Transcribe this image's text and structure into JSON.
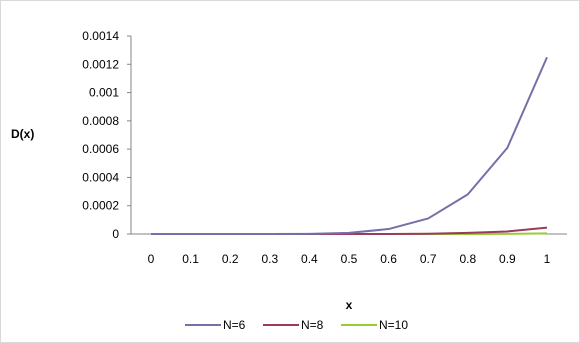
{
  "chart_data": {
    "type": "line",
    "title": "",
    "xlabel": "x",
    "ylabel": "D(x)",
    "x": [
      0,
      0.1,
      0.2,
      0.3,
      0.4,
      0.5,
      0.6,
      0.7,
      0.8,
      0.9,
      1
    ],
    "x_tick_labels": [
      "0",
      "0.1",
      "0.2",
      "0.3",
      "0.4",
      "0.5",
      "0.6",
      "0.7",
      "0.8",
      "0.9",
      "1"
    ],
    "ylim": [
      0,
      0.0014
    ],
    "y_ticks": [
      0,
      0.0002,
      0.0004,
      0.0006,
      0.0008,
      0.001,
      0.0012,
      0.0014
    ],
    "y_tick_labels": [
      "0",
      "0.0002",
      "0.0004",
      "0.0006",
      "0.0008",
      "0.001",
      "0.0012",
      "0.0014"
    ],
    "grid": false,
    "legend_position": "bottom",
    "series": [
      {
        "name": "N=6",
        "color": "#7470a8",
        "values": [
          0,
          0,
          0,
          0,
          1e-06,
          8e-06,
          3.5e-05,
          0.00011,
          0.00028,
          0.00061,
          0.00125
        ]
      },
      {
        "name": "N=8",
        "color": "#9c3a5e",
        "values": [
          0,
          0,
          0,
          0,
          0,
          0,
          0,
          2e-06,
          8e-06,
          1.8e-05,
          4.5e-05
        ]
      },
      {
        "name": "N=10",
        "color": "#9acd32",
        "values": [
          0,
          0,
          0,
          0,
          0,
          0,
          0,
          0,
          0,
          1e-06,
          4e-06
        ]
      }
    ]
  }
}
